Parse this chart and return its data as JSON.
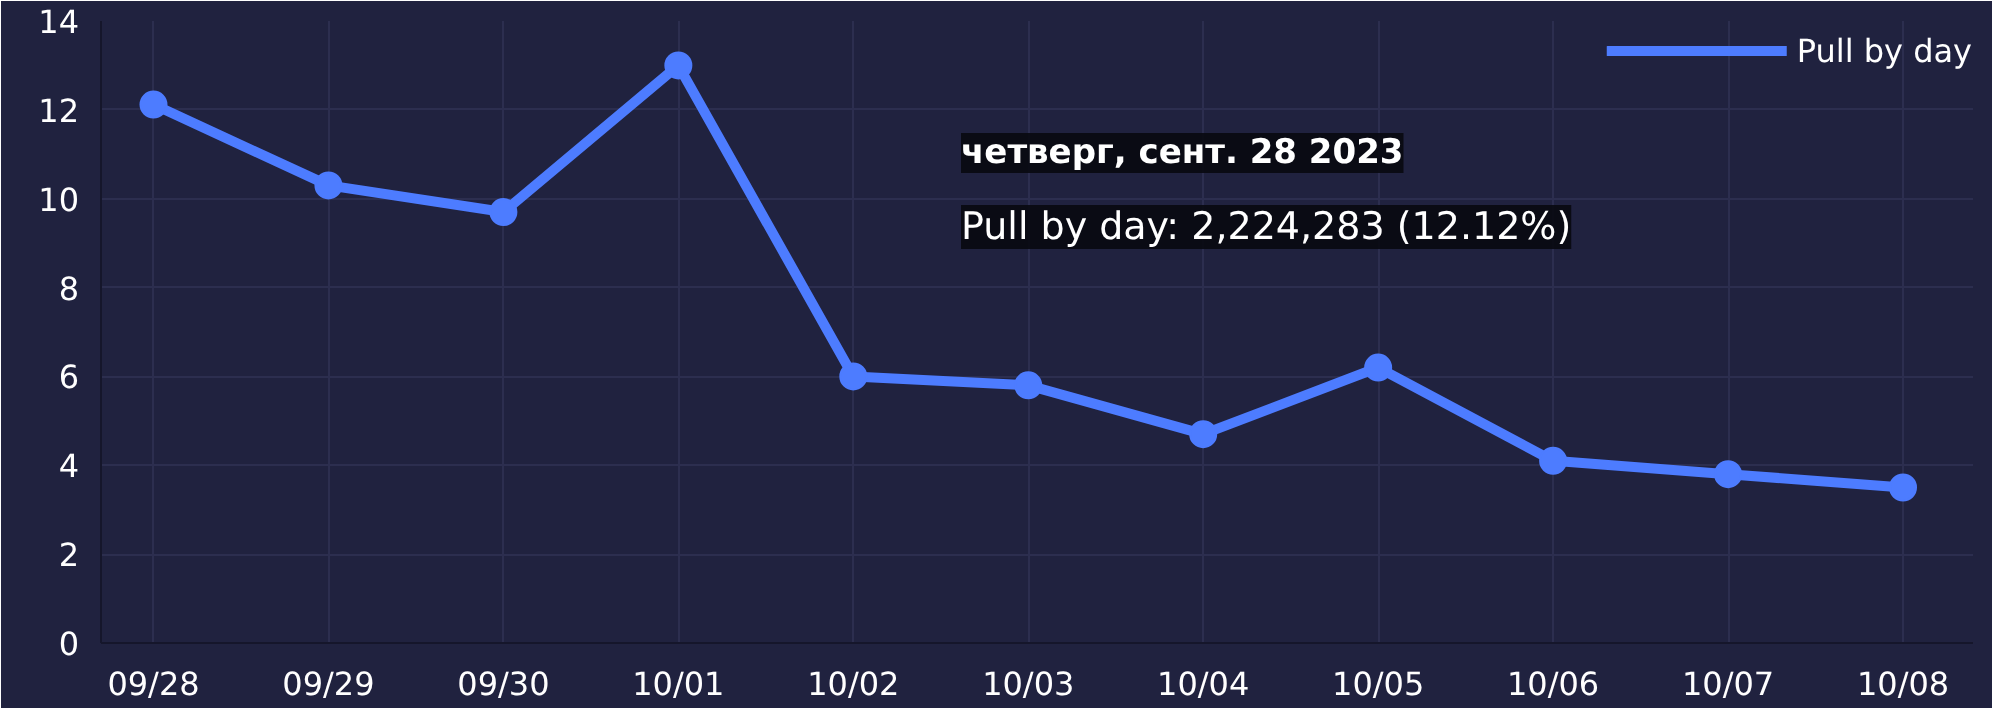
{
  "chart_data": {
    "type": "line",
    "categories": [
      "09/28",
      "09/29",
      "09/30",
      "10/01",
      "10/02",
      "10/03",
      "10/04",
      "10/05",
      "10/06",
      "10/07",
      "10/08"
    ],
    "series": [
      {
        "name": "Pull by day",
        "color": "#4d7cff",
        "values": [
          12.12,
          10.3,
          9.7,
          13.0,
          6.0,
          5.8,
          4.7,
          6.2,
          4.1,
          3.8,
          3.5
        ]
      }
    ],
    "ylim": [
      0,
      14
    ],
    "yticks": [
      0,
      2,
      4,
      6,
      8,
      10,
      12,
      14
    ],
    "grid": true,
    "legend": "top right",
    "marker": "circle",
    "line_style": "solid",
    "annotations": [
      "четверг, сент. 28 2023",
      "Pull by day: 2,224,283 (12.12%)"
    ]
  }
}
